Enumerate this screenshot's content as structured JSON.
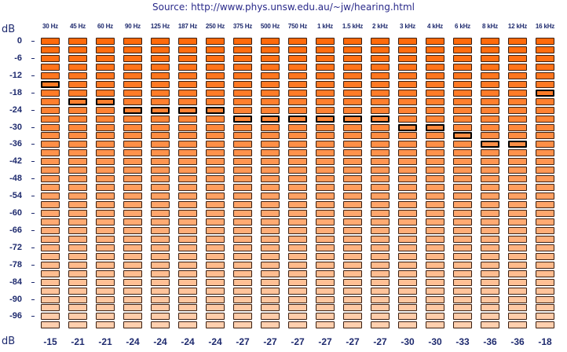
{
  "source": {
    "prefix": "Source: ",
    "link": "http://www.phys.unsw.edu.au/~jw/hearing.html"
  },
  "unit_top": "dB",
  "unit_bottom": "dB",
  "frequencies": [
    "30 Hz",
    "45 Hz",
    "60 Hz",
    "90 Hz",
    "125 Hz",
    "187 Hz",
    "250 Hz",
    "375 Hz",
    "500 Hz",
    "750 Hz",
    "1 kHz",
    "1.5 kHz",
    "2 kHz",
    "3 kHz",
    "4 kHz",
    "6 kHz",
    "8 kHz",
    "12 kHz",
    "16 kHz"
  ],
  "db_labels": [
    "0",
    "-6",
    "-12",
    "-18",
    "-24",
    "-30",
    "-36",
    "-42",
    "-48",
    "-54",
    "-60",
    "-66",
    "-72",
    "-78",
    "-84",
    "-90",
    "-96"
  ],
  "levels": 34,
  "level_step_db": 3,
  "thresholds": [
    -15,
    -21,
    -21,
    -24,
    -24,
    -24,
    -24,
    -27,
    -27,
    -27,
    -27,
    -27,
    -27,
    -30,
    -30,
    -33,
    -36,
    -36,
    -18
  ],
  "colors": {
    "cell_top": "#ff6a0a",
    "cell_bottom": "#ffcfae",
    "cell_border": "#3a1e10",
    "selected_border": "#000000",
    "text": "#1e2a6e"
  }
}
